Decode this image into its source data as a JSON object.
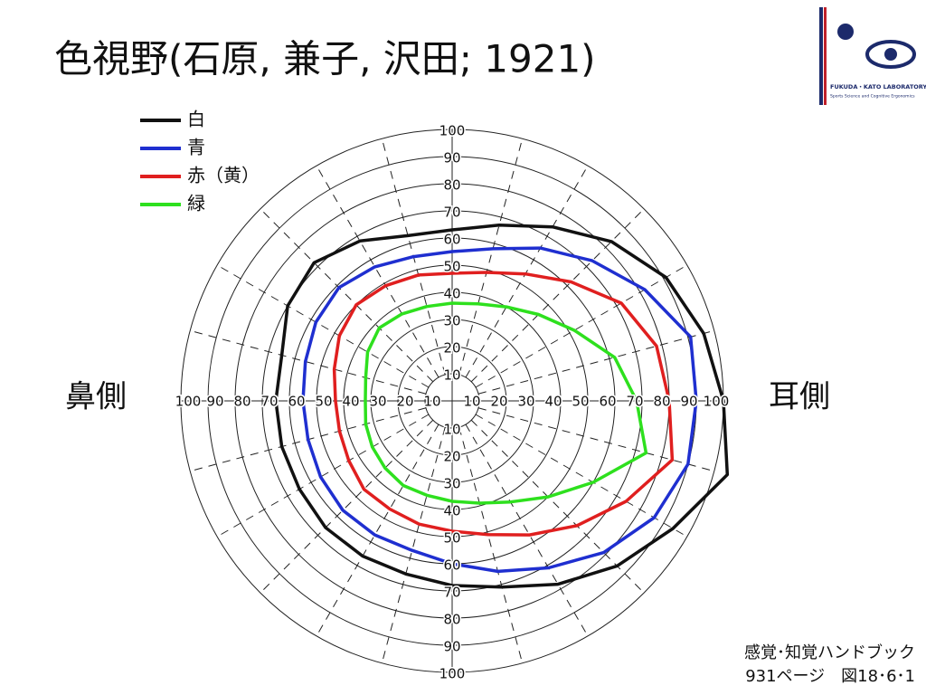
{
  "chart_data": {
    "type": "polar",
    "title": "色視野(石原, 兼子, 沢田; 1921)",
    "left_label": "鼻側",
    "right_label": "耳側",
    "source": [
      "感覚･知覚ハンドブック",
      "931ページ　図18･6･1"
    ],
    "logo": [
      "FUKUDA・KATO LABORATORY",
      "Sports Science and Cognitive Ergonomics"
    ],
    "rlim": [
      0,
      100
    ],
    "rticks": [
      10,
      20,
      30,
      40,
      50,
      60,
      70,
      80,
      90,
      100
    ],
    "theta": [
      0,
      15,
      30,
      45,
      60,
      75,
      90,
      105,
      120,
      135,
      150,
      165,
      180,
      195,
      210,
      225,
      240,
      255,
      270,
      285,
      300,
      315,
      330,
      345
    ],
    "spokes": [
      0,
      15,
      30,
      45,
      60,
      75,
      90,
      105,
      120,
      135,
      150,
      165,
      180,
      195,
      210,
      225,
      240,
      255,
      270,
      285,
      300,
      315,
      330,
      345
    ],
    "series": [
      {
        "name": "白",
        "color": "#111111",
        "values": [
          100,
          96,
          91,
          83,
          74,
          67,
          63,
          63,
          68,
          72,
          70,
          65,
          65,
          65,
          65,
          66,
          66,
          66,
          68,
          71,
          78,
          86,
          94,
          105
        ]
      },
      {
        "name": "青",
        "color": "#1f2fd0",
        "values": [
          90,
          91,
          82,
          73,
          65,
          58,
          55,
          55,
          57,
          59,
          58,
          56,
          55,
          55,
          56,
          57,
          57,
          57,
          60,
          65,
          71,
          79,
          86,
          90
        ]
      },
      {
        "name": "赤（黄）",
        "color": "#e01f1f",
        "values": [
          80,
          78,
          72,
          62,
          54,
          49,
          47,
          48,
          49,
          50,
          48,
          45,
          43,
          43,
          44,
          46,
          46,
          47,
          48,
          51,
          57,
          65,
          74,
          84
        ]
      },
      {
        "name": "緑",
        "color": "#2ee01e",
        "values": [
          68,
          62,
          52,
          45,
          40,
          37,
          36,
          36,
          37,
          38,
          36,
          33,
          32,
          33,
          34,
          35,
          36,
          36,
          37,
          39,
          43,
          50,
          60,
          74
        ]
      }
    ]
  }
}
